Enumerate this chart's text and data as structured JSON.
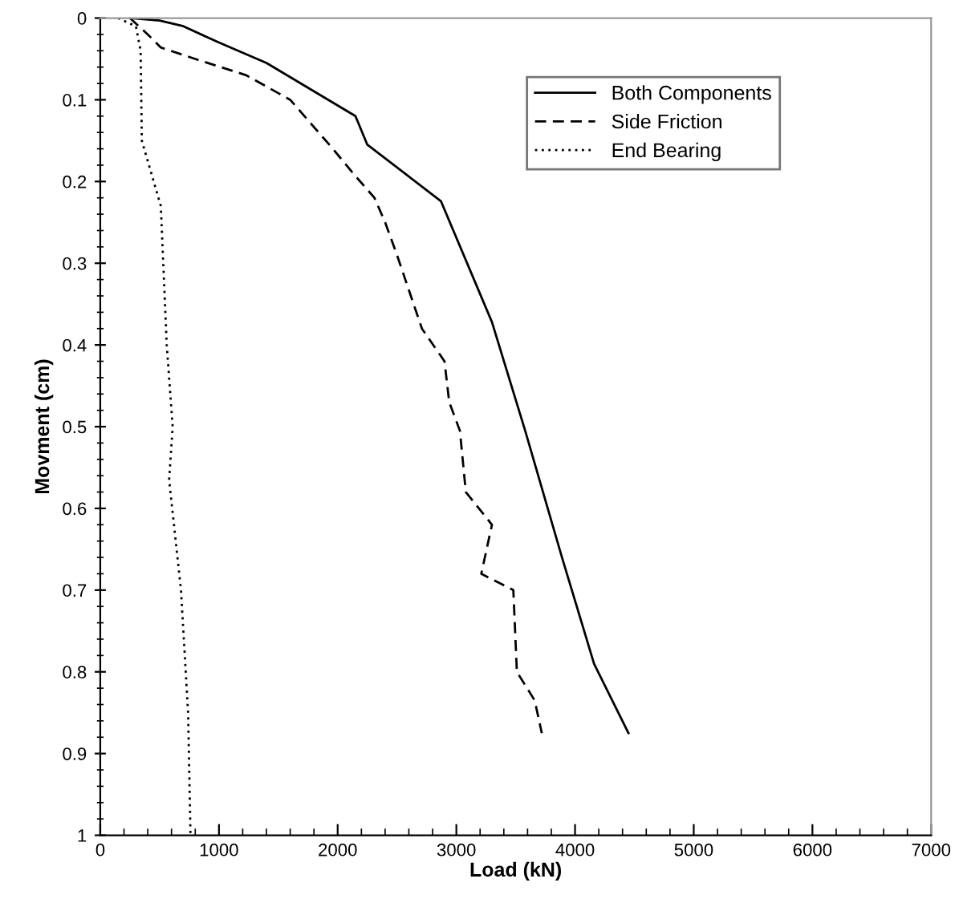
{
  "chart_data": {
    "type": "line",
    "xlabel": "Load (kN)",
    "ylabel": "Movment (cm)",
    "xlim": [
      0,
      7000
    ],
    "xticks": [
      0,
      1000,
      2000,
      3000,
      4000,
      5000,
      6000,
      7000
    ],
    "ylim": [
      1,
      0
    ],
    "yticks": [
      0,
      0.1,
      0.2,
      0.3,
      0.4,
      0.5,
      0.6,
      0.7,
      0.8,
      0.9,
      1
    ],
    "grid": false,
    "legend": "top right",
    "marker": "none",
    "series": [
      {
        "name": "Both Components",
        "color": "#000000",
        "line_style": "solid",
        "x": [
          250,
          500,
          700,
          1000,
          1400,
          2150,
          2250,
          2870,
          3300,
          3580,
          3890,
          4160,
          4450
        ],
        "values": [
          0,
          0.003,
          0.01,
          0.03,
          0.055,
          0.12,
          0.155,
          0.224,
          0.372,
          0.505,
          0.66,
          0.79,
          0.875
        ]
      },
      {
        "name": "Side Friction",
        "color": "#000000",
        "line_style": "dashed",
        "x": [
          250,
          400,
          510,
          800,
          1230,
          1600,
          1960,
          2130,
          2310,
          2400,
          2500,
          2710,
          2900,
          2940,
          3030,
          3080,
          3300,
          3210,
          3480,
          3510,
          3660,
          3720
        ],
        "values": [
          0,
          0.02,
          0.036,
          0.05,
          0.07,
          0.1,
          0.16,
          0.19,
          0.22,
          0.25,
          0.29,
          0.38,
          0.42,
          0.47,
          0.505,
          0.58,
          0.62,
          0.68,
          0.7,
          0.8,
          0.835,
          0.875
        ]
      },
      {
        "name": "End Bearing",
        "color": "#000000",
        "line_style": "dotted",
        "x": [
          150,
          300,
          340,
          350,
          510,
          560,
          610,
          580,
          680,
          740,
          760
        ],
        "values": [
          0,
          0.01,
          0.04,
          0.15,
          0.23,
          0.4,
          0.5,
          0.565,
          0.7,
          0.85,
          1.0
        ]
      }
    ]
  }
}
